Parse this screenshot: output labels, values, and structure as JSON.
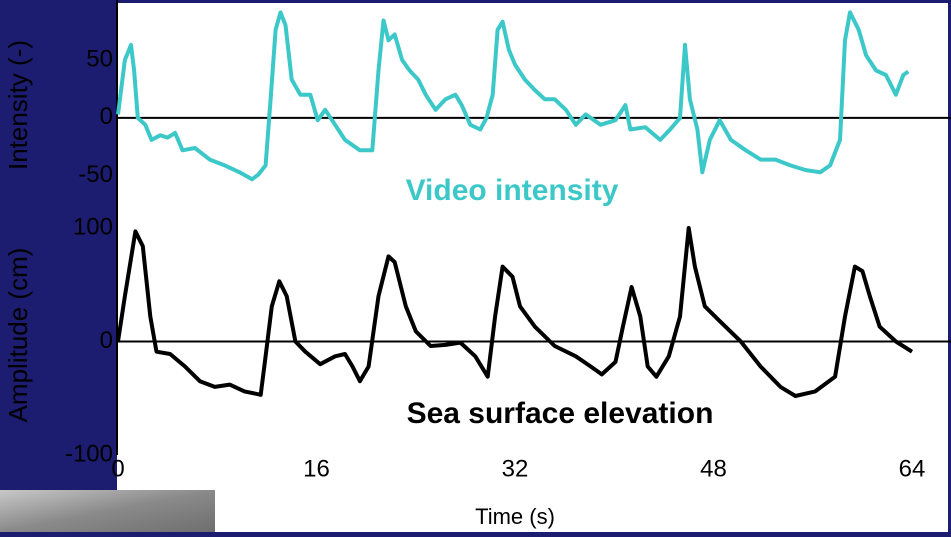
{
  "chart_data": [
    {
      "type": "line",
      "ylabel": "Intensity (-)",
      "annotation": "Video intensity",
      "xlim": [
        0,
        64
      ],
      "ylim": [
        -70,
        100
      ],
      "yticks": [
        -50,
        0,
        50
      ],
      "zero_line": true,
      "series": [
        {
          "name": "Video intensity",
          "color": "#3cc8c8",
          "x": [
            0,
            0.56,
            1.05,
            1.3,
            1.6,
            2.2,
            2.7,
            3.4,
            4.0,
            4.6,
            5.2,
            6.2,
            7.4,
            8.6,
            9.8,
            10.8,
            11.3,
            11.9,
            12.3,
            12.7,
            13.1,
            13.5,
            14.0,
            14.7,
            15.5,
            16.1,
            16.7,
            17.5,
            18.3,
            19.5,
            20.5,
            21.0,
            21.4,
            21.8,
            22.3,
            22.9,
            23.5,
            24.2,
            24.8,
            25.6,
            26.4,
            27.2,
            27.7,
            28.4,
            29.2,
            29.7,
            30.2,
            30.6,
            31.0,
            31.5,
            32.0,
            32.8,
            33.6,
            34.4,
            35.2,
            36.1,
            36.9,
            37.7,
            38.9,
            40.1,
            40.9,
            41.3,
            42.5,
            43.7,
            44.5,
            45.3,
            45.7,
            46.1,
            46.7,
            47.1,
            47.7,
            48.5,
            49.4,
            50.6,
            51.8,
            53.0,
            54.2,
            55.4,
            56.6,
            57.4,
            58.2,
            58.6,
            59.0,
            59.7,
            60.3,
            61.1,
            61.9,
            62.7,
            63.3,
            63.7
          ],
          "values": [
            3,
            50,
            63,
            41,
            0,
            -6,
            -19,
            -15,
            -17,
            -13,
            -28,
            -26,
            -36,
            -41,
            -47,
            -53,
            -49,
            -41,
            16,
            76,
            91,
            80,
            33,
            20,
            20,
            -2,
            7,
            -6,
            -19,
            -28,
            -28,
            41,
            84,
            67,
            72,
            50,
            41,
            33,
            20,
            7,
            16,
            20,
            11,
            -6,
            -10,
            0,
            20,
            76,
            83,
            59,
            46,
            33,
            24,
            16,
            16,
            7,
            -6,
            3,
            -6,
            -2,
            11,
            -10,
            -8,
            -19,
            -10,
            0,
            63,
            16,
            -10,
            -47,
            -19,
            -2,
            -19,
            -28,
            -36,
            -36,
            -41,
            -45,
            -47,
            -41,
            -19,
            67,
            91,
            76,
            54,
            41,
            37,
            20,
            37,
            40
          ]
        }
      ]
    },
    {
      "type": "line",
      "ylabel": "Amplitude (cm)",
      "annotation": "Sea surface elevation",
      "xlabel": "Time (s)",
      "xlim": [
        0,
        64
      ],
      "xticks": [
        0,
        16,
        32,
        48,
        64
      ],
      "ylim": [
        -100,
        100
      ],
      "yticks": [
        -100,
        0,
        100
      ],
      "zero_line": true,
      "series": [
        {
          "name": "Sea surface elevation",
          "color": "#000000",
          "x": [
            0,
            0.56,
            1.4,
            2.0,
            2.6,
            3.1,
            4.2,
            5.4,
            6.6,
            7.8,
            9.0,
            10.2,
            11.5,
            11.9,
            12.4,
            13.0,
            13.6,
            14.3,
            15.1,
            16.3,
            17.5,
            18.3,
            18.9,
            19.5,
            20.2,
            21.0,
            21.8,
            22.3,
            23.2,
            24.0,
            25.2,
            26.4,
            27.6,
            28.8,
            29.8,
            30.4,
            31.0,
            31.8,
            32.4,
            33.6,
            35.2,
            36.9,
            38.1,
            39.0,
            40.1,
            40.7,
            41.4,
            42.1,
            42.7,
            43.4,
            44.4,
            45.3,
            46.0,
            46.5,
            47.3,
            48.5,
            50.2,
            51.8,
            53.4,
            54.6,
            56.2,
            57.8,
            58.6,
            59.4,
            60.0,
            60.6,
            61.4,
            62.7,
            64.0
          ],
          "values": [
            0,
            40,
            97,
            84,
            22,
            -9,
            -11,
            -22,
            -35,
            -40,
            -38,
            -44,
            -47,
            -13,
            31,
            53,
            40,
            0,
            -9,
            -20,
            -13,
            -11,
            -22,
            -35,
            -22,
            40,
            75,
            70,
            31,
            9,
            -4,
            -3,
            -1,
            -13,
            -31,
            22,
            66,
            57,
            31,
            13,
            -4,
            -13,
            -22,
            -29,
            -18,
            13,
            48,
            22,
            -22,
            -31,
            -13,
            22,
            100,
            66,
            31,
            18,
            0,
            -22,
            -40,
            -48,
            -44,
            -31,
            22,
            66,
            62,
            40,
            13,
            0,
            -9
          ]
        }
      ]
    }
  ]
}
